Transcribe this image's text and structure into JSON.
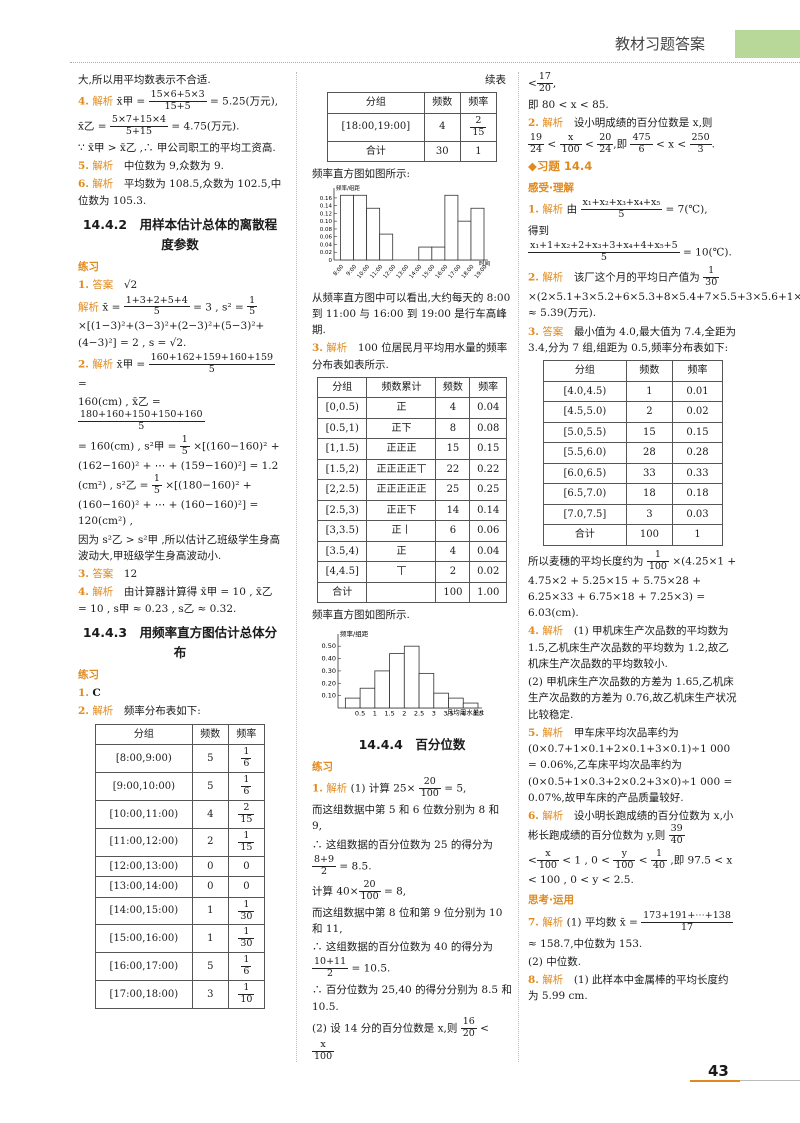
{
  "header": {
    "title": "教材习题答案",
    "page_number": "43"
  },
  "colors": {
    "accent": "#e08a1e",
    "band": "#b8d89a"
  },
  "col1": {
    "l1": "大,所以用平均数表示不合适.",
    "a4n": "4.",
    "a4t": "解析",
    "a4_prefix": "x̄甲 =",
    "a4_num": "15×6+5×3",
    "a4_den": "15+5",
    "a4_res": "= 5.25(万元),",
    "a4b_prefix": "x̄乙 =",
    "a4b_num": "5×7+15×4",
    "a4b_den": "5+15",
    "a4b_res": "= 4.75(万元).",
    "a4c": "∵ x̄甲 > x̄乙 ,∴ 甲公司职工的平均工资高.",
    "a5n": "5.",
    "a5t": "解析",
    "a5": "中位数为 9,众数为 9.",
    "a6n": "6.",
    "a6t": "解析",
    "a6": "平均数为 108.5,众数为 102.5,中位数为 105.3.",
    "sec1": "14.4.2　用样本估计总体的离散程度参数",
    "lianxi1": "练习",
    "b1n": "1.",
    "b1t": "答案",
    "b1": "√2",
    "b1j": "解析",
    "b1_prefix": "x̄ =",
    "b1_num": "1+3+2+5+4",
    "b1_den": "5",
    "b1_mid": "= 3 , s² =",
    "b1_f_num": "1",
    "b1_f_den": "5",
    "b1_tail": "×[(1−3)²+(3−3)²+(2−3)²+(5−3)²+(4−3)²] = 2 , s = √2.",
    "b2n": "2.",
    "b2t": "解析",
    "b2_prefix": "x̄甲 =",
    "b2_num": "160+162+159+160+159",
    "b2_den": "5",
    "b2_eq": "=",
    "b2b_prefix": "160(cm) , x̄乙 =",
    "b2b_num": "180+160+150+150+160",
    "b2b_den": "5",
    "b2c_prefix": "= 160(cm) , s²甲 =",
    "b2c_fn": "1",
    "b2c_fd": "5",
    "b2c_tail": "×[(160−160)² + (162−160)² + ⋯ + (159−160)²] = 1.2 (cm²) , s²乙 =",
    "b2d_fn": "1",
    "b2d_fd": "5",
    "b2d_tail": "×[(180−160)² + (160−160)² + ⋯ + (160−160)²] = 120(cm²) ,",
    "b2e": "因为 s²乙 > s²甲 ,所以估计乙班级学生身高波动大,甲班级学生身高波动小.",
    "b3n": "3.",
    "b3t": "答案",
    "b3": "12",
    "b4n": "4.",
    "b4t": "解析",
    "b4": "由计算器计算得 x̄甲 = 10 , x̄乙 = 10 , s甲 ≈ 0.23 , s乙 ≈ 0.32.",
    "sec2": "14.4.3　用频率直方图估计总体分布",
    "lianxi2": "练习",
    "c1n": "1.",
    "c1": "C",
    "c2n": "2.",
    "c2t": "解析",
    "c2": "频率分布表如下:",
    "table": {
      "headers": [
        "分组",
        "频数",
        "频率"
      ],
      "rows": [
        {
          "g": "[8:00,9:00)",
          "f": "5",
          "n": "1",
          "d": "6"
        },
        {
          "g": "[9:00,10:00)",
          "f": "5",
          "n": "1",
          "d": "6"
        },
        {
          "g": "[10:00,11:00)",
          "f": "4",
          "n": "2",
          "d": "15"
        },
        {
          "g": "[11:00,12:00)",
          "f": "2",
          "n": "1",
          "d": "15"
        },
        {
          "g": "[12:00,13:00)",
          "f": "0",
          "v": "0"
        },
        {
          "g": "[13:00,14:00)",
          "f": "0",
          "v": "0"
        },
        {
          "g": "[14:00,15:00)",
          "f": "1",
          "n": "1",
          "d": "30"
        },
        {
          "g": "[15:00,16:00)",
          "f": "1",
          "n": "1",
          "d": "30"
        },
        {
          "g": "[16:00,17:00)",
          "f": "5",
          "n": "1",
          "d": "6"
        },
        {
          "g": "[17:00,18:00)",
          "f": "3",
          "n": "1",
          "d": "10"
        }
      ]
    }
  },
  "col2": {
    "cont": "续表",
    "t1": {
      "headers": [
        "分组",
        "频数",
        "频率"
      ],
      "r1": {
        "g": "[18:00,19:00]",
        "f": "4",
        "n": "2",
        "d": "15"
      },
      "r2": {
        "g": "合计",
        "f": "30",
        "v": "1"
      }
    },
    "hist1_caption": "频率直方图如图所示:",
    "p1": "从频率直方图中可以看出,大约每天的 8:00 到 11:00 与 16:00 到 19:00 是行车高峰期.",
    "a3n": "3.",
    "a3t": "解析",
    "a3": "100 位居民月平均用水量的频率分布表如表所示.",
    "t2": {
      "headers": [
        "分组",
        "频数累计",
        "频数",
        "频率"
      ],
      "rows": [
        {
          "g": "[0,0.5)",
          "tally": "正",
          "f": "4",
          "r": "0.04"
        },
        {
          "g": "[0.5,1)",
          "tally": "正下",
          "f": "8",
          "r": "0.08"
        },
        {
          "g": "[1,1.5)",
          "tally": "正正正",
          "f": "15",
          "r": "0.15"
        },
        {
          "g": "[1.5,2)",
          "tally": "正正正正丅",
          "f": "22",
          "r": "0.22"
        },
        {
          "g": "[2,2.5)",
          "tally": "正正正正正",
          "f": "25",
          "r": "0.25"
        },
        {
          "g": "[2.5,3)",
          "tally": "正正下",
          "f": "14",
          "r": "0.14"
        },
        {
          "g": "[3,3.5)",
          "tally": "正丨",
          "f": "6",
          "r": "0.06"
        },
        {
          "g": "[3.5,4)",
          "tally": "正",
          "f": "4",
          "r": "0.04"
        },
        {
          "g": "[4,4.5]",
          "tally": "丅",
          "f": "2",
          "r": "0.02"
        },
        {
          "g": "合计",
          "tally": "",
          "f": "100",
          "r": "1.00"
        }
      ]
    },
    "hist2_caption": "频率直方图如图所示.",
    "sec3": "14.4.4　百分位数",
    "lianxi": "练习",
    "d1n": "1.",
    "d1t": "解析",
    "d1a_pre": "(1) 计算 25×",
    "d1a_fn": "20",
    "d1a_fd": "100",
    "d1a_post": "= 5,",
    "d1b": "而这组数据中第 5 和 6 位数分别为 8 和 9,",
    "d1c": "∴ 这组数据的百分位数为 25 的得分为",
    "d1d_fn": "8+9",
    "d1d_fd": "2",
    "d1d_post": "= 8.5.",
    "d1e_pre": "计算 40×",
    "d1e_fn": "20",
    "d1e_fd": "100",
    "d1e_post": "= 8,",
    "d1f": "而这组数据中第 8 位和第 9 位分别为 10 和 11,",
    "d1g": "∴ 这组数据的百分位数为 40 的得分为",
    "d1h_fn": "10+11",
    "d1h_fd": "2",
    "d1h_post": "= 10.5.",
    "d1i": "∴ 百分位数为 25,40 的得分分别为 8.5 和 10.5.",
    "d1j_pre": "(2) 设 14 分的百分位数是 x,则",
    "d1j_f1n": "16",
    "d1j_f1d": "20",
    "d1j_f2n": "x",
    "d1j_f2d": "100"
  },
  "col3": {
    "top_fn": "17",
    "top_fd": "20",
    "top_post": ",",
    "top2": "即 80 < x < 85.",
    "e2n": "2.",
    "e2t": "解析",
    "e2": "设小明成绩的百分位数是 x,则",
    "e2_f1n": "19",
    "e2_f1d": "24",
    "e2_f2n": "x",
    "e2_f2d": "100",
    "e2_f3n": "20",
    "e2_f3d": "24",
    "e2_mid": ",即",
    "e2_f4n": "475",
    "e2_f4d": "6",
    "e2_f5n": "250",
    "e2_f5d": "3",
    "e2_end": ".",
    "xiti": "◆习题 14.4",
    "gan": "感受·理解",
    "f1n": "1.",
    "f1t": "解析",
    "f1_pre": "由",
    "f1_fn": "x₁+x₂+x₃+x₄+x₅",
    "f1_fd": "5",
    "f1_post": "= 7(℃),",
    "f1b": "得到",
    "f1c_fn": "x₁+1+x₂+2+x₃+3+x₄+4+x₅+5",
    "f1c_fd": "5",
    "f1c_post": "= 10(℃).",
    "f2n": "2.",
    "f2t": "解析",
    "f2_pre": "该厂这个月的平均日产值为",
    "f2_fn": "1",
    "f2_fd": "30",
    "f2_tail": "×(2×5.1+3×5.2+6×5.3+8×5.4+7×5.5+3×5.6+1×5.7) ≈ 5.39(万元).",
    "f3n": "3.",
    "f3t": "答案",
    "f3": "最小值为 4.0,最大值为 7.4,全距为 3.4,分为 7 组,组距为 0.5,频率分布表如下:",
    "t3": {
      "headers": [
        "分组",
        "频数",
        "频率"
      ],
      "rows": [
        {
          "g": "[4.0,4.5)",
          "f": "1",
          "r": "0.01"
        },
        {
          "g": "[4.5,5.0)",
          "f": "2",
          "r": "0.02"
        },
        {
          "g": "[5.0,5.5)",
          "f": "15",
          "r": "0.15"
        },
        {
          "g": "[5.5,6.0)",
          "f": "28",
          "r": "0.28"
        },
        {
          "g": "[6.0,6.5)",
          "f": "33",
          "r": "0.33"
        },
        {
          "g": "[6.5,7.0)",
          "f": "18",
          "r": "0.18"
        },
        {
          "g": "[7.0,7.5]",
          "f": "3",
          "r": "0.03"
        },
        {
          "g": "合计",
          "f": "100",
          "r": "1"
        }
      ]
    },
    "f3b_pre": "所以麦穗的平均长度约为",
    "f3b_fn": "1",
    "f3b_fd": "100",
    "f3b_tail": "×(4.25×1 + 4.75×2 + 5.25×15 + 5.75×28 + 6.25×33 + 6.75×18 + 7.25×3) = 6.03(cm).",
    "f4n": "4.",
    "f4t": "解析",
    "f4": "(1) 甲机床生产次品数的平均数为 1.5,乙机床生产次品数的平均数为 1.2,故乙机床生产次品数的平均数较小.",
    "f4b": "(2) 甲机床生产次品数的方差为 1.65,乙机床生产次品数的方差为 0.76,故乙机床生产状况比较稳定.",
    "f5n": "5.",
    "f5t": "解析",
    "f5": "甲车床平均次品率约为(0×0.7+1×0.1+2×0.1+3×0.1)÷1 000 = 0.06%,乙车床平均次品率约为(0×0.5+1×0.3+2×0.2+3×0)÷1 000 = 0.07%,故甲车床的产品质量较好.",
    "f6n": "6.",
    "f6t": "解析",
    "f6": "设小明长跑成绩的百分位数为 x,小彬长跑成绩的百分位数为 y,则",
    "f6_f1n": "39",
    "f6_f1d": "40",
    "f6_f2n": "x",
    "f6_f2d": "100",
    "f6_m1": "< 1 , 0 <",
    "f6_f3n": "y",
    "f6_f3d": "100",
    "f6_m2": "<",
    "f6_f4n": "1",
    "f6_f4d": "40",
    "f6_m3": ",即 97.5 < x < 100 , 0 < y < 2.5.",
    "si": "思考·运用",
    "g7n": "7.",
    "g7t": "解析",
    "g7_pre": "(1) 平均数 x̄ =",
    "g7_fn": "173+191+⋯+138",
    "g7_fd": "17",
    "g7b": "≈ 158.7,中位数为 153.",
    "g7c": "(2) 中位数.",
    "g8n": "8.",
    "g8t": "解析",
    "g8": "(1) 此样本中金属棒的平均长度约为 5.99 cm."
  },
  "chart_data": [
    {
      "type": "bar",
      "title": "",
      "ylabel": "频率/组距",
      "xlabel": "时间",
      "categories": [
        "8:00",
        "9:00",
        "10:00",
        "11:00",
        "12:00",
        "13:00",
        "14:00",
        "15:00",
        "16:00",
        "17:00",
        "18:00"
      ],
      "values": [
        0.1667,
        0.1667,
        0.1333,
        0.0667,
        0,
        0,
        0.0333,
        0.0333,
        0.1667,
        0.1,
        0.1333
      ],
      "y_ticks": [
        "0.16",
        "0.14",
        "0.12",
        "0.10",
        "0.08",
        "0.06",
        "0.04",
        "0.02",
        "0"
      ],
      "x_ticks": [
        "8:00",
        "9:00",
        "10:00",
        "11:00",
        "12:00",
        "13:00",
        "14:00",
        "15:00",
        "16:00",
        "17:00",
        "18:00",
        "19:00"
      ],
      "ylim": [
        0,
        0.17
      ]
    },
    {
      "type": "bar",
      "title": "",
      "ylabel": "频率/组距",
      "xlabel": "月均用水量/t",
      "categories": [
        "0",
        "0.5",
        "1",
        "1.5",
        "2",
        "2.5",
        "3",
        "3.5",
        "4"
      ],
      "values": [
        0.08,
        0.16,
        0.3,
        0.44,
        0.5,
        0.28,
        0.12,
        0.08,
        0.04
      ],
      "y_ticks": [
        "0.50",
        "0.40",
        "0.30",
        "0.20",
        "0.10"
      ],
      "x_ticks": [
        "0.5",
        "1",
        "1.5",
        "2",
        "2.5",
        "3",
        "3.5",
        "4",
        "4.5"
      ],
      "ylim": [
        0,
        0.55
      ]
    }
  ]
}
